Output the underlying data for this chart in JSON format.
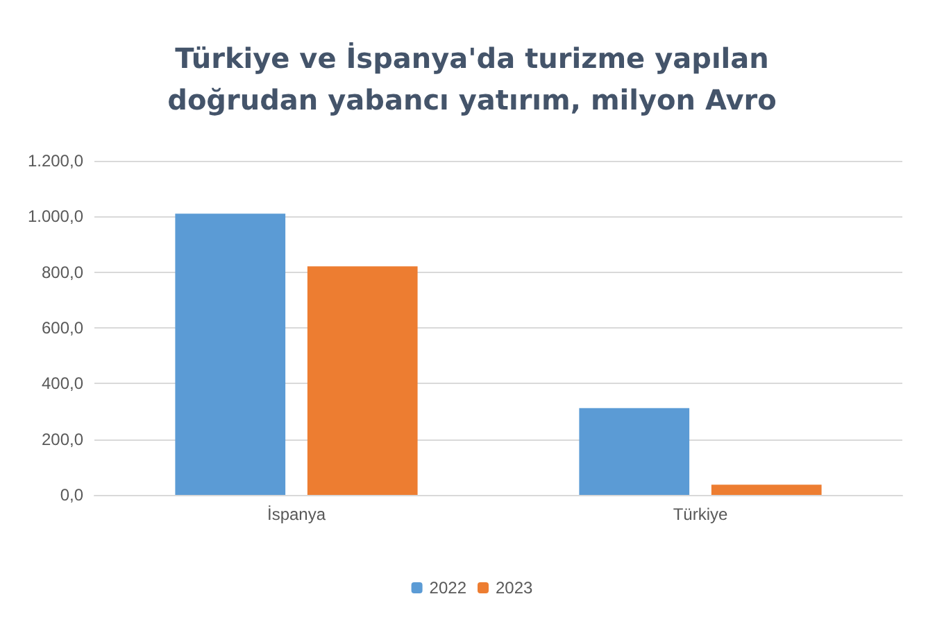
{
  "chart_data": {
    "type": "bar",
    "title": "Türkiye ve İspanya'da turizme yapılan\ndoğrudan yabancı yatırım, milyon Avro",
    "categories": [
      "İspanya",
      "Türkiye"
    ],
    "series": [
      {
        "name": "2022",
        "color": "#5b9bd5",
        "values": [
          1010,
          312
        ]
      },
      {
        "name": "2023",
        "color": "#ed7d31",
        "values": [
          821,
          37
        ]
      }
    ],
    "ylim": [
      0,
      1200
    ],
    "yticks": [
      {
        "value": 0,
        "label": "0,0"
      },
      {
        "value": 200,
        "label": "200,0"
      },
      {
        "value": 400,
        "label": "400,0"
      },
      {
        "value": 600,
        "label": "600,0"
      },
      {
        "value": 800,
        "label": "800,0"
      },
      {
        "value": 1000,
        "label": "1.000,0"
      },
      {
        "value": 1200,
        "label": "1.200,0"
      }
    ],
    "grid": "y",
    "legend": "bottom"
  }
}
